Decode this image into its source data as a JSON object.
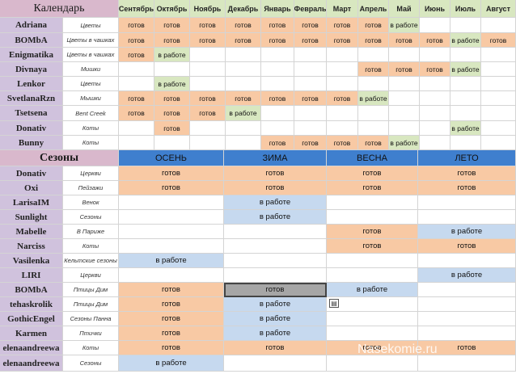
{
  "calendar": {
    "title": "Календарь",
    "months": [
      "Сентябрь",
      "Октябрь",
      "Ноябрь",
      "Декабрь",
      "Январь",
      "Февраль",
      "Март",
      "Апрель",
      "Май",
      "Июнь",
      "Июль",
      "Август"
    ],
    "rows": [
      {
        "name": "Adriana",
        "category": "Цветы",
        "cells": [
          [
            "готов",
            "o"
          ],
          [
            "готов",
            "o"
          ],
          [
            "готов",
            "o"
          ],
          [
            "готов",
            "o"
          ],
          [
            "готов",
            "o"
          ],
          [
            "готов",
            "o"
          ],
          [
            "готов",
            "o"
          ],
          [
            "готов",
            "o"
          ],
          [
            "в работе",
            "g"
          ],
          [
            "",
            ""
          ],
          [
            "",
            ""
          ],
          [
            "",
            ""
          ]
        ]
      },
      {
        "name": "BOMbA",
        "category": "Цветы в чашках",
        "cells": [
          [
            "готов",
            "o"
          ],
          [
            "готов",
            "o"
          ],
          [
            "готов",
            "o"
          ],
          [
            "готов",
            "o"
          ],
          [
            "готов",
            "o"
          ],
          [
            "готов",
            "o"
          ],
          [
            "готов",
            "o"
          ],
          [
            "готов",
            "o"
          ],
          [
            "готов",
            "o"
          ],
          [
            "готов",
            "o"
          ],
          [
            "в работе",
            "g"
          ],
          [
            "готов",
            "o"
          ]
        ]
      },
      {
        "name": "Enigmatika",
        "category": "Цветы в чашках",
        "cells": [
          [
            "готов",
            "o"
          ],
          [
            "в работе",
            "g"
          ],
          [
            "",
            ""
          ],
          [
            "",
            ""
          ],
          [
            "",
            ""
          ],
          [
            "",
            ""
          ],
          [
            "",
            ""
          ],
          [
            "",
            ""
          ],
          [
            "",
            ""
          ],
          [
            "",
            ""
          ],
          [
            "",
            ""
          ],
          [
            "",
            ""
          ]
        ]
      },
      {
        "name": "Divnaya",
        "category": "Мишки",
        "cells": [
          [
            "",
            ""
          ],
          [
            "",
            ""
          ],
          [
            "",
            ""
          ],
          [
            "",
            ""
          ],
          [
            "",
            ""
          ],
          [
            "",
            ""
          ],
          [
            "",
            ""
          ],
          [
            "готов",
            "o"
          ],
          [
            "готов",
            "o"
          ],
          [
            "готов",
            "o"
          ],
          [
            "в работе",
            "g"
          ],
          [
            "",
            ""
          ]
        ]
      },
      {
        "name": "Lenkor",
        "category": "Цветы",
        "cells": [
          [
            "",
            ""
          ],
          [
            "в работе",
            "g"
          ],
          [
            "",
            ""
          ],
          [
            "",
            ""
          ],
          [
            "",
            ""
          ],
          [
            "",
            ""
          ],
          [
            "",
            ""
          ],
          [
            "",
            ""
          ],
          [
            "",
            ""
          ],
          [
            "",
            ""
          ],
          [
            "",
            ""
          ],
          [
            "",
            ""
          ]
        ]
      },
      {
        "name": "SvetlanaRzn",
        "category": "Мышки",
        "cells": [
          [
            "готов",
            "o"
          ],
          [
            "готов",
            "o"
          ],
          [
            "готов",
            "o"
          ],
          [
            "готов",
            "o"
          ],
          [
            "готов",
            "o"
          ],
          [
            "готов",
            "o"
          ],
          [
            "готов",
            "o"
          ],
          [
            "в работе",
            "g"
          ],
          [
            "",
            ""
          ],
          [
            "",
            ""
          ],
          [
            "",
            ""
          ],
          [
            "",
            ""
          ]
        ]
      },
      {
        "name": "Tsetsena",
        "category": "Bent Creek",
        "cells": [
          [
            "готов",
            "o"
          ],
          [
            "готов",
            "o"
          ],
          [
            "готов",
            "o"
          ],
          [
            "в работе",
            "g"
          ],
          [
            "",
            ""
          ],
          [
            "",
            ""
          ],
          [
            "",
            ""
          ],
          [
            "",
            ""
          ],
          [
            "",
            ""
          ],
          [
            "",
            ""
          ],
          [
            "",
            ""
          ],
          [
            "",
            ""
          ]
        ]
      },
      {
        "name": "Donativ",
        "category": "Коты",
        "cells": [
          [
            "",
            ""
          ],
          [
            "готов",
            "o"
          ],
          [
            "",
            ""
          ],
          [
            "",
            ""
          ],
          [
            "",
            ""
          ],
          [
            "",
            ""
          ],
          [
            "",
            ""
          ],
          [
            "",
            ""
          ],
          [
            "",
            ""
          ],
          [
            "",
            ""
          ],
          [
            "в работе",
            "g"
          ],
          [
            "",
            ""
          ]
        ]
      },
      {
        "name": "Bunny",
        "category": "Коты",
        "cells": [
          [
            "",
            ""
          ],
          [
            "",
            ""
          ],
          [
            "",
            ""
          ],
          [
            "",
            ""
          ],
          [
            "готов",
            "o"
          ],
          [
            "готов",
            "o"
          ],
          [
            "готов",
            "o"
          ],
          [
            "готов",
            "o"
          ],
          [
            "в работе",
            "g"
          ],
          [
            "",
            ""
          ],
          [
            "",
            ""
          ],
          [
            "",
            ""
          ]
        ]
      }
    ]
  },
  "seasons": {
    "title": "Сезоны",
    "headers": [
      "ОСЕНЬ",
      "ЗИМА",
      "ВЕСНА",
      "ЛЕТО"
    ],
    "rows": [
      {
        "name": "Donativ",
        "category": "Церкви",
        "cells": [
          [
            "готов",
            "o"
          ],
          [
            "готов",
            "o"
          ],
          [
            "готов",
            "o"
          ],
          [
            "готов",
            "o"
          ]
        ]
      },
      {
        "name": "Oxi",
        "category": "Пейзажи",
        "cells": [
          [
            "готов",
            "o"
          ],
          [
            "готов",
            "o"
          ],
          [
            "готов",
            "o"
          ],
          [
            "готов",
            "o"
          ]
        ]
      },
      {
        "name": "LarisaIM",
        "category": "Венок",
        "cells": [
          [
            "",
            ""
          ],
          [
            "в работе",
            "b"
          ],
          [
            "",
            ""
          ],
          [
            "",
            ""
          ]
        ]
      },
      {
        "name": "Sunlight",
        "category": "Сезоны",
        "cells": [
          [
            "",
            ""
          ],
          [
            "в работе",
            "b"
          ],
          [
            "",
            ""
          ],
          [
            "",
            ""
          ]
        ]
      },
      {
        "name": "Mabelle",
        "category": "В Париже",
        "cells": [
          [
            "",
            ""
          ],
          [
            "",
            ""
          ],
          [
            "готов",
            "o"
          ],
          [
            "в работе",
            "b"
          ]
        ]
      },
      {
        "name": "Narciss",
        "category": "Коты",
        "cells": [
          [
            "",
            ""
          ],
          [
            "",
            ""
          ],
          [
            "готов",
            "o"
          ],
          [
            "готов",
            "o"
          ]
        ]
      },
      {
        "name": "Vasilenka",
        "category": "Кельтские сезоны",
        "cells": [
          [
            "в работе",
            "b"
          ],
          [
            "",
            ""
          ],
          [
            "",
            ""
          ],
          [
            "",
            ""
          ]
        ]
      },
      {
        "name": "LIRI",
        "category": "Церкви",
        "cells": [
          [
            "",
            ""
          ],
          [
            "",
            ""
          ],
          [
            "",
            ""
          ],
          [
            "в работе",
            "b"
          ]
        ]
      },
      {
        "name": "BOMbA",
        "category": "Птицы Дим",
        "cells": [
          [
            "готов",
            "o"
          ],
          [
            "готов",
            "x"
          ],
          [
            "в работе",
            "b"
          ],
          [
            "",
            ""
          ]
        ]
      },
      {
        "name": "tehaskrolik",
        "category": "Птицы Дим",
        "cells": [
          [
            "готов",
            "o"
          ],
          [
            "в работе",
            "b"
          ],
          [
            "",
            ""
          ],
          [
            "",
            ""
          ]
        ]
      },
      {
        "name": "GothicEngel",
        "category": "Сезоны Панна",
        "cells": [
          [
            "готов",
            "o"
          ],
          [
            "в работе",
            "b"
          ],
          [
            "",
            ""
          ],
          [
            "",
            ""
          ]
        ]
      },
      {
        "name": "Karmen",
        "category": "Птички",
        "cells": [
          [
            "готов",
            "o"
          ],
          [
            "в работе",
            "b"
          ],
          [
            "",
            ""
          ],
          [
            "",
            ""
          ]
        ]
      },
      {
        "name": "elenaandreewa",
        "category": "Коты",
        "cells": [
          [
            "готов",
            "o"
          ],
          [
            "готов",
            "o"
          ],
          [
            "готов",
            "o"
          ],
          [
            "готов",
            "o"
          ]
        ]
      },
      {
        "name": "elenaandreewa",
        "category": "Сезоны",
        "cells": [
          [
            "в работе",
            "b"
          ],
          [
            "",
            ""
          ],
          [
            "",
            ""
          ],
          [
            "",
            ""
          ]
        ]
      }
    ]
  },
  "watermark": "Nasekomie.ru",
  "colors": {
    "done": "#f8c9a4",
    "in_progress_cal": "#d8e7c0",
    "in_progress_season": "#c6d9ef",
    "selected": "#a6a6a6",
    "season_header": "#3f7fce",
    "name_col": "#d0c2dd",
    "title": "#d9b8cc"
  },
  "icons": {
    "paste_options": "paste-options-icon"
  }
}
